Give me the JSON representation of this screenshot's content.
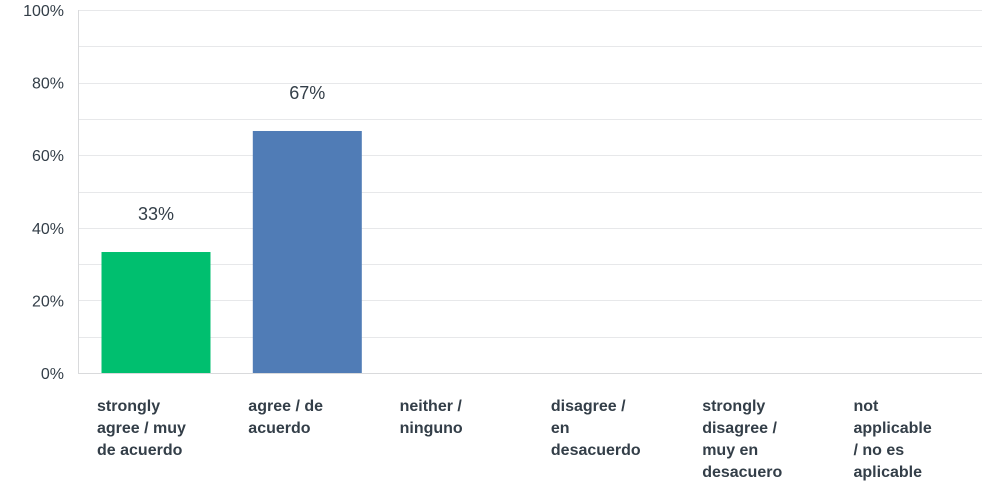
{
  "chart_data": {
    "type": "bar",
    "categories": [
      "strongly agree / muy de acuerdo",
      "agree / de acuerdo",
      "neither / ninguno",
      "disagree / en desacuerdo",
      "strongly disagree / muy en desacuero",
      "not applicable / no es aplicable"
    ],
    "category_lines": [
      [
        "strongly",
        "agree / muy",
        "de acuerdo"
      ],
      [
        "agree / de",
        "acuerdo"
      ],
      [
        "neither /",
        "ninguno"
      ],
      [
        "disagree /",
        "en",
        "desacuerdo"
      ],
      [
        "strongly",
        "disagree /",
        "muy en",
        "desacuero"
      ],
      [
        "not",
        "applicable",
        "/ no es",
        "aplicable"
      ]
    ],
    "values": [
      33.33,
      66.67,
      0,
      0,
      0,
      0
    ],
    "data_labels": [
      "33%",
      "67%",
      "",
      "",
      "",
      ""
    ],
    "bar_colors": [
      "#00bf6f",
      "#507cb6",
      "#507cb6",
      "#507cb6",
      "#507cb6",
      "#507cb6"
    ],
    "y_ticks": [
      0,
      20,
      40,
      60,
      80,
      100
    ],
    "y_tick_labels": [
      "0%",
      "20%",
      "40%",
      "60%",
      "80%",
      "100%"
    ],
    "ylim": [
      0,
      100
    ],
    "grid": true,
    "title": "",
    "xlabel": "",
    "ylabel": ""
  }
}
